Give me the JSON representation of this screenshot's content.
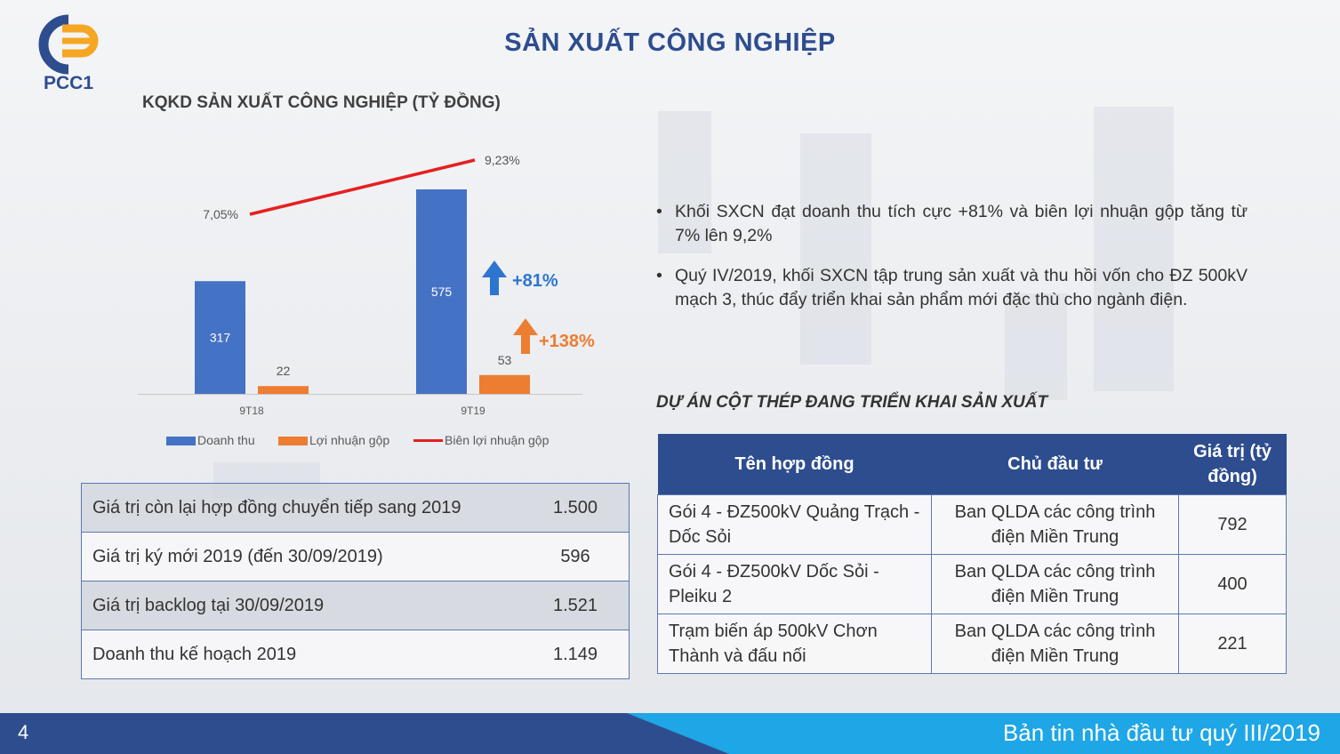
{
  "page_title": "SẢN XUẤT CÔNG NGHIỆP",
  "logo_text": "PCC1",
  "chart_data": {
    "type": "bar",
    "title": "KQKD SẢN XUẤT CÔNG NGHIỆP (TỶ ĐỒNG)",
    "categories": [
      "9T18",
      "9T19"
    ],
    "series": [
      {
        "name": "Doanh thu",
        "type": "bar",
        "color": "#4472c4",
        "values": [
          317,
          575
        ]
      },
      {
        "name": "Lợi nhuận gộp",
        "type": "bar",
        "color": "#ed7d31",
        "values": [
          22,
          53
        ]
      },
      {
        "name": "Biên lợi nhuận gộp",
        "type": "line",
        "color": "#e52020",
        "values": [
          7.05,
          9.23
        ],
        "labels": [
          "7,05%",
          "9,23%"
        ]
      }
    ],
    "annotations": [
      {
        "text": "+81%",
        "color": "#2e75d0"
      },
      {
        "text": "+138%",
        "color": "#ed7d31"
      }
    ],
    "legend": "bottom",
    "grid": false
  },
  "bullets": [
    "Khối SXCN đạt doanh thu tích cực +81% và biên lợi nhuận gộp tăng từ 7% lên 9,2%",
    "Quý IV/2019, khối SXCN tập trung sản xuất và thu hồi vốn cho ĐZ 500kV mạch 3, thúc đẩy triển khai sản phẩm mới đặc thù cho ngành điện."
  ],
  "bullet_symbol": "•",
  "left_table": [
    {
      "label": "Giá trị còn lại hợp đồng chuyển tiếp sang 2019",
      "value": "1.500"
    },
    {
      "label": "Giá trị ký mới 2019 (đến 30/09/2019)",
      "value": "596"
    },
    {
      "label": "Giá trị backlog tại 30/09/2019",
      "value": "1.521"
    },
    {
      "label": "Doanh thu kế hoạch 2019",
      "value": "1.149"
    }
  ],
  "project_title": "DỰ ÁN CỘT THÉP ĐANG TRIỂN KHAI SẢN XUẤT",
  "project_table": {
    "headers": [
      "Tên hợp đồng",
      "Chủ đầu tư",
      "Giá trị (tỷ đồng)"
    ],
    "rows": [
      [
        "Gói 4 - ĐZ500kV Quảng Trạch - Dốc Sỏi",
        "Ban QLDA các công trình điện Miền Trung",
        "792"
      ],
      [
        "Gói 4 - ĐZ500kV Dốc Sỏi - Pleiku 2",
        "Ban QLDA các công trình điện Miền Trung",
        "400"
      ],
      [
        "Trạm biến áp 500kV Chơn Thành và đấu nối",
        "Ban QLDA các công trình điện Miền Trung",
        "221"
      ]
    ]
  },
  "footer": {
    "page_number": "4",
    "text": "Bản tin nhà đầu tư quý III/2019"
  },
  "colors": {
    "accent": "#2e4d8f",
    "footer_light": "#1ea6e6"
  }
}
